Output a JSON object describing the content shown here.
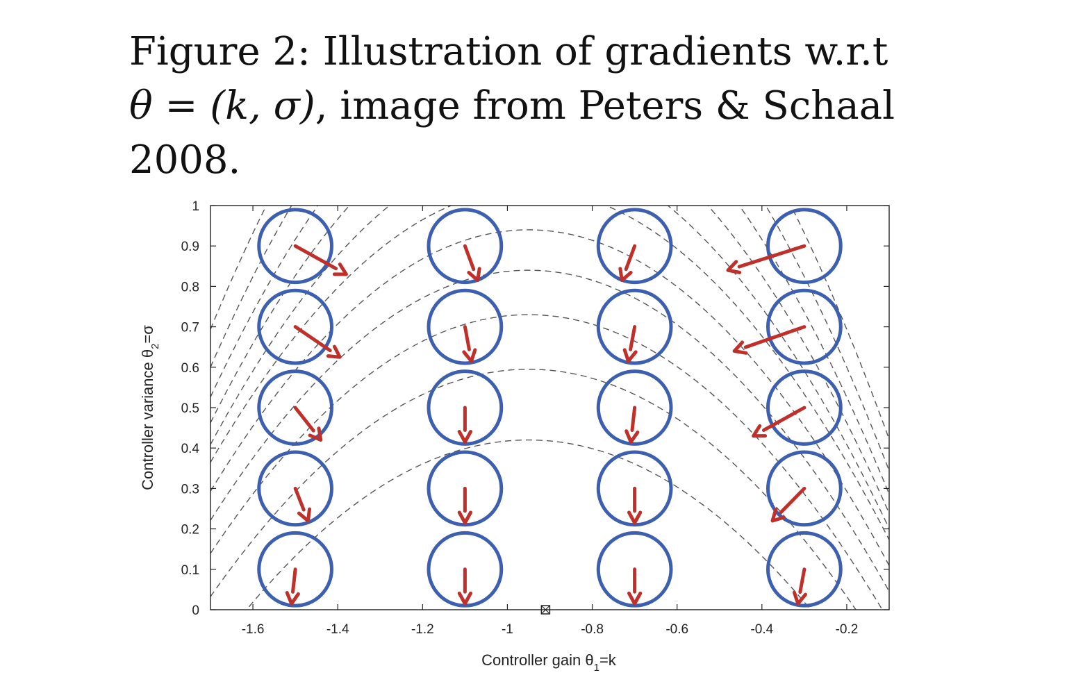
{
  "caption": {
    "prefix": "Figure 2: Illustration of gradients w.r.t",
    "theta": "θ",
    "equals": " = ",
    "params": "(k, σ)",
    "suffix": ", image from Peters & Schaal 2008."
  },
  "chart_data": {
    "type": "scatter",
    "title": "",
    "xlabel_main": "Controller gain θ",
    "xlabel_sub": "1",
    "xlabel_tail": "=k",
    "ylabel_main": "Controller variance θ",
    "ylabel_sub": "2",
    "ylabel_tail": "=σ",
    "xlim": [
      -1.7,
      -0.1
    ],
    "ylim": [
      0,
      1
    ],
    "xticks": [
      -1.6,
      -1.4,
      -1.2,
      -1,
      -0.8,
      -0.6,
      -0.4,
      -0.2
    ],
    "xtick_labels": [
      "-1.6",
      "-1.4",
      "-1.2",
      "-1",
      "-0.8",
      "-0.6",
      "-0.4",
      "-0.2"
    ],
    "yticks": [
      0,
      0.1,
      0.2,
      0.3,
      0.4,
      0.5,
      0.6,
      0.7,
      0.8,
      0.9,
      1
    ],
    "ytick_labels": [
      "0",
      "0.1",
      "0.2",
      "0.3",
      "0.4",
      "0.5",
      "0.6",
      "0.7",
      "0.8",
      "0.9",
      "1"
    ],
    "circle_radius_sigma": 0.09,
    "circle_color": "#3d5fb0",
    "arrow_color": "#c0302a",
    "contour_color": "#555555",
    "optimum": {
      "x": -0.91,
      "y": 0
    },
    "points": [
      {
        "x": -1.5,
        "y": 0.9,
        "dx": 0.04,
        "dy": -0.07
      },
      {
        "x": -1.5,
        "y": 0.7,
        "dx": 0.035,
        "dy": -0.075
      },
      {
        "x": -1.5,
        "y": 0.5,
        "dx": 0.02,
        "dy": -0.08
      },
      {
        "x": -1.5,
        "y": 0.3,
        "dx": 0.01,
        "dy": -0.08
      },
      {
        "x": -1.5,
        "y": 0.1,
        "dx": -0.003,
        "dy": -0.085
      },
      {
        "x": -1.1,
        "y": 0.9,
        "dx": 0.01,
        "dy": -0.085
      },
      {
        "x": -1.1,
        "y": 0.7,
        "dx": 0.005,
        "dy": -0.085
      },
      {
        "x": -1.1,
        "y": 0.5,
        "dx": 0.0,
        "dy": -0.085
      },
      {
        "x": -1.1,
        "y": 0.3,
        "dx": 0.0,
        "dy": -0.085
      },
      {
        "x": -1.1,
        "y": 0.1,
        "dx": 0.0,
        "dy": -0.085
      },
      {
        "x": -0.7,
        "y": 0.9,
        "dx": -0.01,
        "dy": -0.085
      },
      {
        "x": -0.7,
        "y": 0.7,
        "dx": -0.005,
        "dy": -0.085
      },
      {
        "x": -0.7,
        "y": 0.5,
        "dx": -0.003,
        "dy": -0.085
      },
      {
        "x": -0.7,
        "y": 0.3,
        "dx": 0.0,
        "dy": -0.085
      },
      {
        "x": -0.7,
        "y": 0.1,
        "dx": 0.0,
        "dy": -0.085
      },
      {
        "x": -0.3,
        "y": 0.9,
        "dx": -0.06,
        "dy": -0.06
      },
      {
        "x": -0.3,
        "y": 0.7,
        "dx": -0.055,
        "dy": -0.06
      },
      {
        "x": -0.3,
        "y": 0.5,
        "dx": -0.04,
        "dy": -0.07
      },
      {
        "x": -0.3,
        "y": 0.3,
        "dx": -0.025,
        "dy": -0.08
      },
      {
        "x": -0.3,
        "y": 0.1,
        "dx": -0.005,
        "dy": -0.085
      }
    ],
    "contours": [
      {
        "peak": 0.42,
        "curv": 0.95
      },
      {
        "peak": 0.595,
        "curv": 1.0
      },
      {
        "peak": 0.73,
        "curv": 1.05
      },
      {
        "peak": 0.84,
        "curv": 1.1
      },
      {
        "peak": 0.94,
        "curv": 1.15
      },
      {
        "peak": 1.04,
        "curv": 1.2
      },
      {
        "peak": 1.14,
        "curv": 1.3
      },
      {
        "peak": 1.25,
        "curv": 1.4
      },
      {
        "peak": 1.37,
        "curv": 1.5
      },
      {
        "peak": 1.5,
        "curv": 1.6
      },
      {
        "peak": 1.65,
        "curv": 1.7
      }
    ]
  }
}
